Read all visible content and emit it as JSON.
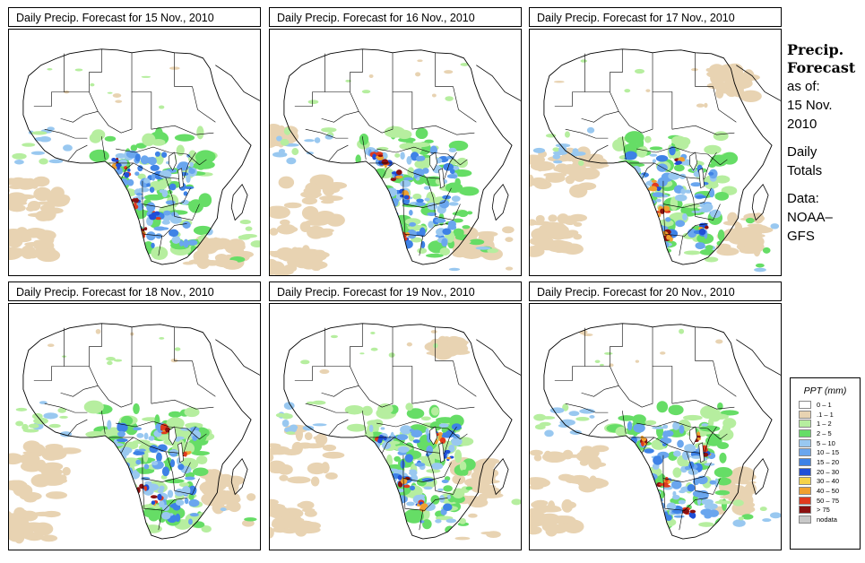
{
  "panels": [
    {
      "title": "Daily Precip. Forecast for  15 Nov., 2010"
    },
    {
      "title": "Daily Precip. Forecast for  16 Nov., 2010"
    },
    {
      "title": "Daily Precip. Forecast for  17 Nov., 2010"
    },
    {
      "title": "Daily Precip. Forecast for  18 Nov., 2010"
    },
    {
      "title": "Daily Precip. Forecast for  19 Nov., 2010"
    },
    {
      "title": "Daily Precip. Forecast for  20 Nov., 2010"
    }
  ],
  "sidebar": {
    "title_line1": "Precip.",
    "title_line2": "Forecast",
    "asof_line1": "as of:",
    "asof_line2": "15 Nov.",
    "asof_line3": "2010",
    "daily_line1": "Daily",
    "daily_line2": "Totals",
    "data_line1": "Data:",
    "data_line2": "NOAA–",
    "data_line3": "GFS"
  },
  "legend": {
    "title": "PPT (mm)",
    "entries": [
      {
        "label": "0 – 1",
        "color": "#ffffff"
      },
      {
        "label": ".1 – 1",
        "color": "#e8d3b2"
      },
      {
        "label": "1 – 2",
        "color": "#b6ee9f"
      },
      {
        "label": "2 – 5",
        "color": "#66dd66"
      },
      {
        "label": "5 – 10",
        "color": "#99c8f0"
      },
      {
        "label": "10 – 15",
        "color": "#6aa6ee"
      },
      {
        "label": "15 – 20",
        "color": "#3e82e6"
      },
      {
        "label": "20 – 30",
        "color": "#1f4fd8"
      },
      {
        "label": "30 – 40",
        "color": "#f5d24a"
      },
      {
        "label": "40 – 50",
        "color": "#f0a030"
      },
      {
        "label": "50 – 75",
        "color": "#e03a1e"
      },
      {
        "label": "> 75",
        "color": "#8b1010"
      },
      {
        "label": "nodata",
        "color": "#c8c8c8"
      }
    ]
  }
}
